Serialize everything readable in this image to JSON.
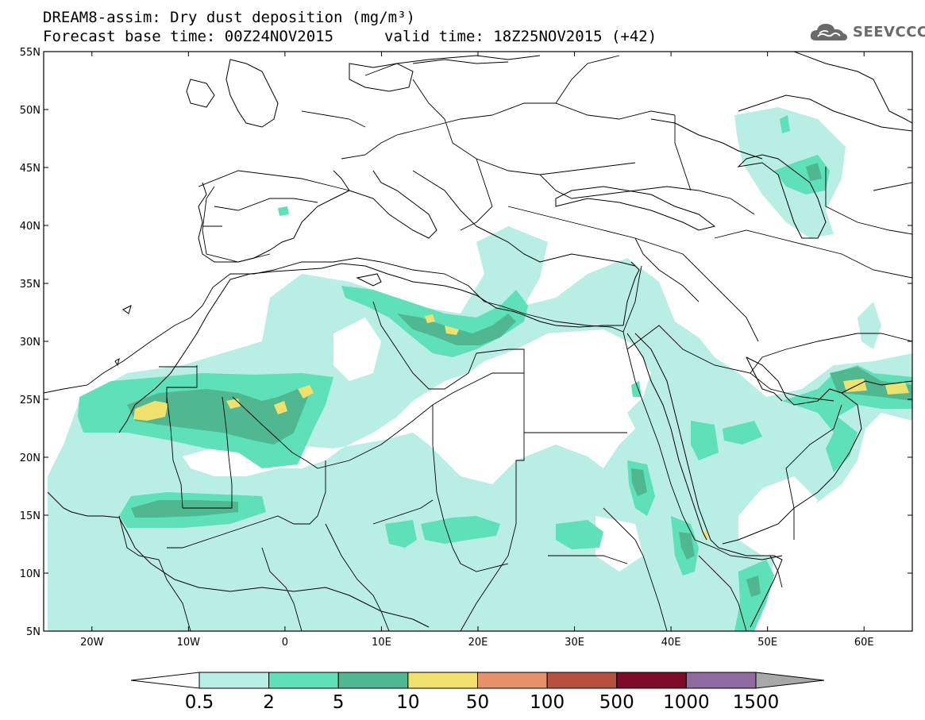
{
  "title": {
    "line1": "DREAM8-assim: Dry dust deposition (mg/m³)",
    "base": "Forecast base time: 00Z24NOV2015",
    "valid": "valid time: 18Z25NOV2015 (+42)"
  },
  "logo": {
    "text": "SEEVCCC",
    "icon": "cloud-logo-icon",
    "color": "#6a6a6a"
  },
  "map": {
    "lon_range": [
      -25,
      65
    ],
    "lat_range": [
      5,
      55
    ],
    "lat_ticks": [
      {
        "value": 55,
        "label": "55N"
      },
      {
        "value": 50,
        "label": "50N"
      },
      {
        "value": 45,
        "label": "45N"
      },
      {
        "value": 40,
        "label": "40N"
      },
      {
        "value": 35,
        "label": "35N"
      },
      {
        "value": 30,
        "label": "30N"
      },
      {
        "value": 25,
        "label": "25N"
      },
      {
        "value": 20,
        "label": "20N"
      },
      {
        "value": 15,
        "label": "15N"
      },
      {
        "value": 10,
        "label": "10N"
      },
      {
        "value": 5,
        "label": "5N"
      }
    ],
    "lon_ticks": [
      {
        "value": -20,
        "label": "20W"
      },
      {
        "value": -10,
        "label": "10W"
      },
      {
        "value": 0,
        "label": "0"
      },
      {
        "value": 10,
        "label": "10E"
      },
      {
        "value": 20,
        "label": "20E"
      },
      {
        "value": 30,
        "label": "30E"
      },
      {
        "value": 40,
        "label": "40E"
      },
      {
        "value": 50,
        "label": "50E"
      },
      {
        "value": 60,
        "label": "60E"
      }
    ]
  },
  "colorbar": {
    "levels": [
      {
        "label": "0.5",
        "color": "#b8eee4"
      },
      {
        "label": "2",
        "color": "#5ee0b8"
      },
      {
        "label": "5",
        "color": "#4fb890"
      },
      {
        "label": "10",
        "color": "#f0e06c"
      },
      {
        "label": "50",
        "color": "#e8906a"
      },
      {
        "label": "100",
        "color": "#b85040"
      },
      {
        "label": "500",
        "color": "#800828"
      },
      {
        "label": "1000",
        "color": "#8e6a9e"
      },
      {
        "label": "1500",
        "color": "#a8a8a8"
      }
    ],
    "under_color": "#ffffff"
  }
}
